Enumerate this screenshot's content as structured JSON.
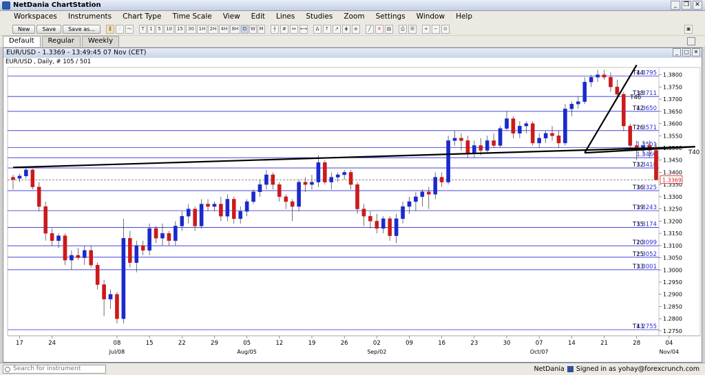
{
  "app": {
    "title": "NetDania ChartStation"
  },
  "menu": [
    "Workspaces",
    "Instruments",
    "Chart Type",
    "Time Scale",
    "View",
    "Edit",
    "Lines",
    "Studies",
    "Zoom",
    "Settings",
    "Window",
    "Help"
  ],
  "toolbar": {
    "new_label": "New",
    "save_label": "Save",
    "save_as_label": "Save as...",
    "timescale_buttons": [
      "T",
      "1",
      "5",
      "10",
      "15",
      "30",
      "1H",
      "2H",
      "4H",
      "8H",
      "D",
      "W",
      "M"
    ],
    "selected_timescale": "D"
  },
  "tabs": [
    "Default",
    "Regular",
    "Weekly"
  ],
  "tabs_active": "Default",
  "chart_window": {
    "title": "EUR/USD - 1.3369 - 13:49:45  07 Nov (CET)",
    "subtitle": "EUR/USD , Daily, # 105 / 501"
  },
  "chart_data": {
    "type": "candlestick",
    "instrument": "EUR/USD",
    "timeframe": "Daily",
    "ylim": [
      1.273,
      1.383
    ],
    "y_ticks": [
      "1.3800",
      "1.3750",
      "1.3700",
      "1.3650",
      "1.3600",
      "1.3550",
      "1.3500",
      "1.3450",
      "1.3400",
      "1.3350",
      "1.3300",
      "1.3250",
      "1.3200",
      "1.3150",
      "1.3100",
      "1.3050",
      "1.3000",
      "1.2950",
      "1.2900",
      "1.2850",
      "1.2800",
      "1.2750"
    ],
    "x_tick_labels": [
      "17",
      "24",
      "08",
      "15",
      "22",
      "29",
      "05",
      "12",
      "19",
      "26",
      "02",
      "09",
      "16",
      "23",
      "30",
      "07",
      "14",
      "21",
      "28",
      "04"
    ],
    "x_tick_index": [
      1,
      6,
      16,
      21,
      26,
      31,
      36,
      41,
      46,
      51,
      56,
      61,
      66,
      71,
      76,
      81,
      86,
      91,
      96,
      101
    ],
    "month_labels": [
      {
        "text": "Jul/08",
        "index": 16
      },
      {
        "text": "Aug/05",
        "index": 36
      },
      {
        "text": "Sep/02",
        "index": 56
      },
      {
        "text": "Oct/07",
        "index": 81
      },
      {
        "text": "Nov/04",
        "index": 101
      }
    ],
    "current_price": "1.3369",
    "levels": [
      {
        "name": "T44",
        "value": "1.3795",
        "y": 1.3795
      },
      {
        "name": "T38",
        "value": "1.3711",
        "y": 1.3711
      },
      {
        "name": "T42",
        "value": "1.3650",
        "y": 1.365
      },
      {
        "name": "T26",
        "value": "1.3571",
        "y": 1.3571
      },
      {
        "name": "",
        "value": "1.3501",
        "y": 1.3501
      },
      {
        "name": "",
        "value": "1.3460",
        "y": 1.346
      },
      {
        "name": "T32",
        "value": "1.3418",
        "y": 1.3418
      },
      {
        "name": "T36",
        "value": "1.3325",
        "y": 1.3325
      },
      {
        "name": "T39",
        "value": "1.3243",
        "y": 1.3243
      },
      {
        "name": "T35",
        "value": "1.3174",
        "y": 1.3174
      },
      {
        "name": "T20",
        "value": "1.3099",
        "y": 1.3099
      },
      {
        "name": "T25",
        "value": "1.3052",
        "y": 1.3052
      },
      {
        "name": "T33",
        "value": "1.3001",
        "y": 1.3001
      },
      {
        "name": "T43",
        "value": "1.2755",
        "y": 1.2755
      }
    ],
    "trendline_labels": [
      {
        "name": "T46",
        "index": 95,
        "y": 1.37
      },
      {
        "name": "T40",
        "index": 104,
        "y": 1.3475
      }
    ],
    "trendlines": [
      {
        "from": [
          0,
          1.342
        ],
        "to": [
          105,
          1.3505
        ]
      },
      {
        "from": [
          88,
          1.348
        ],
        "to": [
          105,
          1.3505
        ]
      },
      {
        "from": [
          88,
          1.348
        ],
        "to": [
          96,
          1.384
        ]
      }
    ],
    "candles": [
      [
        1.338,
        1.339,
        1.333,
        1.337
      ],
      [
        1.3375,
        1.3395,
        1.336,
        1.3385
      ],
      [
        1.3385,
        1.342,
        1.3375,
        1.341
      ],
      [
        1.341,
        1.3415,
        1.333,
        1.334
      ],
      [
        1.334,
        1.336,
        1.324,
        1.326
      ],
      [
        1.326,
        1.328,
        1.312,
        1.315
      ],
      [
        1.315,
        1.317,
        1.31,
        1.312
      ],
      [
        1.312,
        1.315,
        1.309,
        1.314
      ],
      [
        1.314,
        1.315,
        1.302,
        1.304
      ],
      [
        1.304,
        1.308,
        1.3,
        1.306
      ],
      [
        1.306,
        1.309,
        1.304,
        1.305
      ],
      [
        1.305,
        1.31,
        1.302,
        1.308
      ],
      [
        1.308,
        1.31,
        1.301,
        1.302
      ],
      [
        1.302,
        1.303,
        1.292,
        1.294
      ],
      [
        1.294,
        1.296,
        1.281,
        1.288
      ],
      [
        1.288,
        1.292,
        1.284,
        1.29
      ],
      [
        1.29,
        1.291,
        1.278,
        1.28
      ],
      [
        1.28,
        1.321,
        1.278,
        1.313
      ],
      [
        1.313,
        1.316,
        1.301,
        1.303
      ],
      [
        1.303,
        1.312,
        1.299,
        1.31
      ],
      [
        1.31,
        1.312,
        1.306,
        1.308
      ],
      [
        1.308,
        1.319,
        1.306,
        1.317
      ],
      [
        1.317,
        1.318,
        1.311,
        1.313
      ],
      [
        1.313,
        1.319,
        1.31,
        1.315
      ],
      [
        1.315,
        1.316,
        1.31,
        1.312
      ],
      [
        1.312,
        1.32,
        1.31,
        1.318
      ],
      [
        1.318,
        1.324,
        1.316,
        1.322
      ],
      [
        1.322,
        1.327,
        1.319,
        1.325
      ],
      [
        1.325,
        1.326,
        1.316,
        1.318
      ],
      [
        1.318,
        1.329,
        1.317,
        1.327
      ],
      [
        1.327,
        1.329,
        1.324,
        1.326
      ],
      [
        1.326,
        1.328,
        1.324,
        1.327
      ],
      [
        1.327,
        1.33,
        1.32,
        1.322
      ],
      [
        1.322,
        1.331,
        1.32,
        1.329
      ],
      [
        1.329,
        1.33,
        1.319,
        1.321
      ],
      [
        1.321,
        1.326,
        1.319,
        1.324
      ],
      [
        1.324,
        1.329,
        1.322,
        1.328
      ],
      [
        1.328,
        1.333,
        1.327,
        1.332
      ],
      [
        1.332,
        1.337,
        1.33,
        1.335
      ],
      [
        1.335,
        1.341,
        1.333,
        1.339
      ],
      [
        1.339,
        1.34,
        1.333,
        1.335
      ],
      [
        1.335,
        1.336,
        1.328,
        1.33
      ],
      [
        1.33,
        1.331,
        1.325,
        1.328
      ],
      [
        1.328,
        1.329,
        1.32,
        1.326
      ],
      [
        1.326,
        1.337,
        1.324,
        1.336
      ],
      [
        1.336,
        1.338,
        1.332,
        1.335
      ],
      [
        1.335,
        1.339,
        1.333,
        1.336
      ],
      [
        1.336,
        1.347,
        1.334,
        1.344
      ],
      [
        1.344,
        1.345,
        1.335,
        1.336
      ],
      [
        1.336,
        1.34,
        1.333,
        1.338
      ],
      [
        1.338,
        1.34,
        1.336,
        1.339
      ],
      [
        1.339,
        1.341,
        1.337,
        1.34
      ],
      [
        1.34,
        1.341,
        1.333,
        1.335
      ],
      [
        1.335,
        1.336,
        1.323,
        1.325
      ],
      [
        1.325,
        1.327,
        1.318,
        1.322
      ],
      [
        1.322,
        1.324,
        1.317,
        1.32
      ],
      [
        1.32,
        1.323,
        1.315,
        1.317
      ],
      [
        1.317,
        1.322,
        1.315,
        1.321
      ],
      [
        1.321,
        1.322,
        1.312,
        1.314
      ],
      [
        1.314,
        1.323,
        1.311,
        1.321
      ],
      [
        1.321,
        1.328,
        1.319,
        1.326
      ],
      [
        1.326,
        1.33,
        1.323,
        1.328
      ],
      [
        1.328,
        1.332,
        1.324,
        1.33
      ],
      [
        1.33,
        1.333,
        1.326,
        1.332
      ],
      [
        1.332,
        1.334,
        1.325,
        1.331
      ],
      [
        1.331,
        1.34,
        1.329,
        1.338
      ],
      [
        1.338,
        1.34,
        1.334,
        1.336
      ],
      [
        1.336,
        1.355,
        1.335,
        1.353
      ],
      [
        1.353,
        1.357,
        1.351,
        1.354
      ],
      [
        1.354,
        1.356,
        1.349,
        1.353
      ],
      [
        1.353,
        1.355,
        1.346,
        1.348
      ],
      [
        1.348,
        1.353,
        1.346,
        1.351
      ],
      [
        1.351,
        1.354,
        1.347,
        1.349
      ],
      [
        1.349,
        1.355,
        1.348,
        1.353
      ],
      [
        1.353,
        1.356,
        1.35,
        1.351
      ],
      [
        1.351,
        1.359,
        1.35,
        1.358
      ],
      [
        1.358,
        1.365,
        1.357,
        1.362
      ],
      [
        1.362,
        1.363,
        1.354,
        1.356
      ],
      [
        1.356,
        1.361,
        1.354,
        1.359
      ],
      [
        1.359,
        1.361,
        1.356,
        1.36
      ],
      [
        1.36,
        1.361,
        1.351,
        1.352
      ],
      [
        1.352,
        1.356,
        1.35,
        1.354
      ],
      [
        1.354,
        1.357,
        1.352,
        1.356
      ],
      [
        1.356,
        1.359,
        1.353,
        1.355
      ],
      [
        1.355,
        1.357,
        1.35,
        1.352
      ],
      [
        1.352,
        1.368,
        1.351,
        1.366
      ],
      [
        1.366,
        1.369,
        1.363,
        1.368
      ],
      [
        1.368,
        1.371,
        1.366,
        1.369
      ],
      [
        1.369,
        1.379,
        1.368,
        1.377
      ],
      [
        1.377,
        1.38,
        1.375,
        1.379
      ],
      [
        1.379,
        1.382,
        1.377,
        1.38
      ],
      [
        1.38,
        1.382,
        1.378,
        1.379
      ],
      [
        1.379,
        1.381,
        1.373,
        1.375
      ],
      [
        1.375,
        1.378,
        1.371,
        1.372
      ],
      [
        1.372,
        1.373,
        1.357,
        1.359
      ],
      [
        1.359,
        1.36,
        1.349,
        1.351
      ],
      [
        1.351,
        1.353,
        1.345,
        1.349
      ],
      [
        1.349,
        1.353,
        1.347,
        1.351
      ],
      [
        1.351,
        1.353,
        1.346,
        1.349
      ],
      [
        1.349,
        1.352,
        1.337,
        1.3369
      ]
    ]
  },
  "status": {
    "search_placeholder": "Search for instrument",
    "brand": "NetDania",
    "signed_in": "Signed in as yohay@forexcrunch.com"
  },
  "colors": {
    "up": "#1a2acc",
    "down": "#cc1a1a",
    "level_line": "#2a2ad0",
    "trendline": "#000000"
  }
}
